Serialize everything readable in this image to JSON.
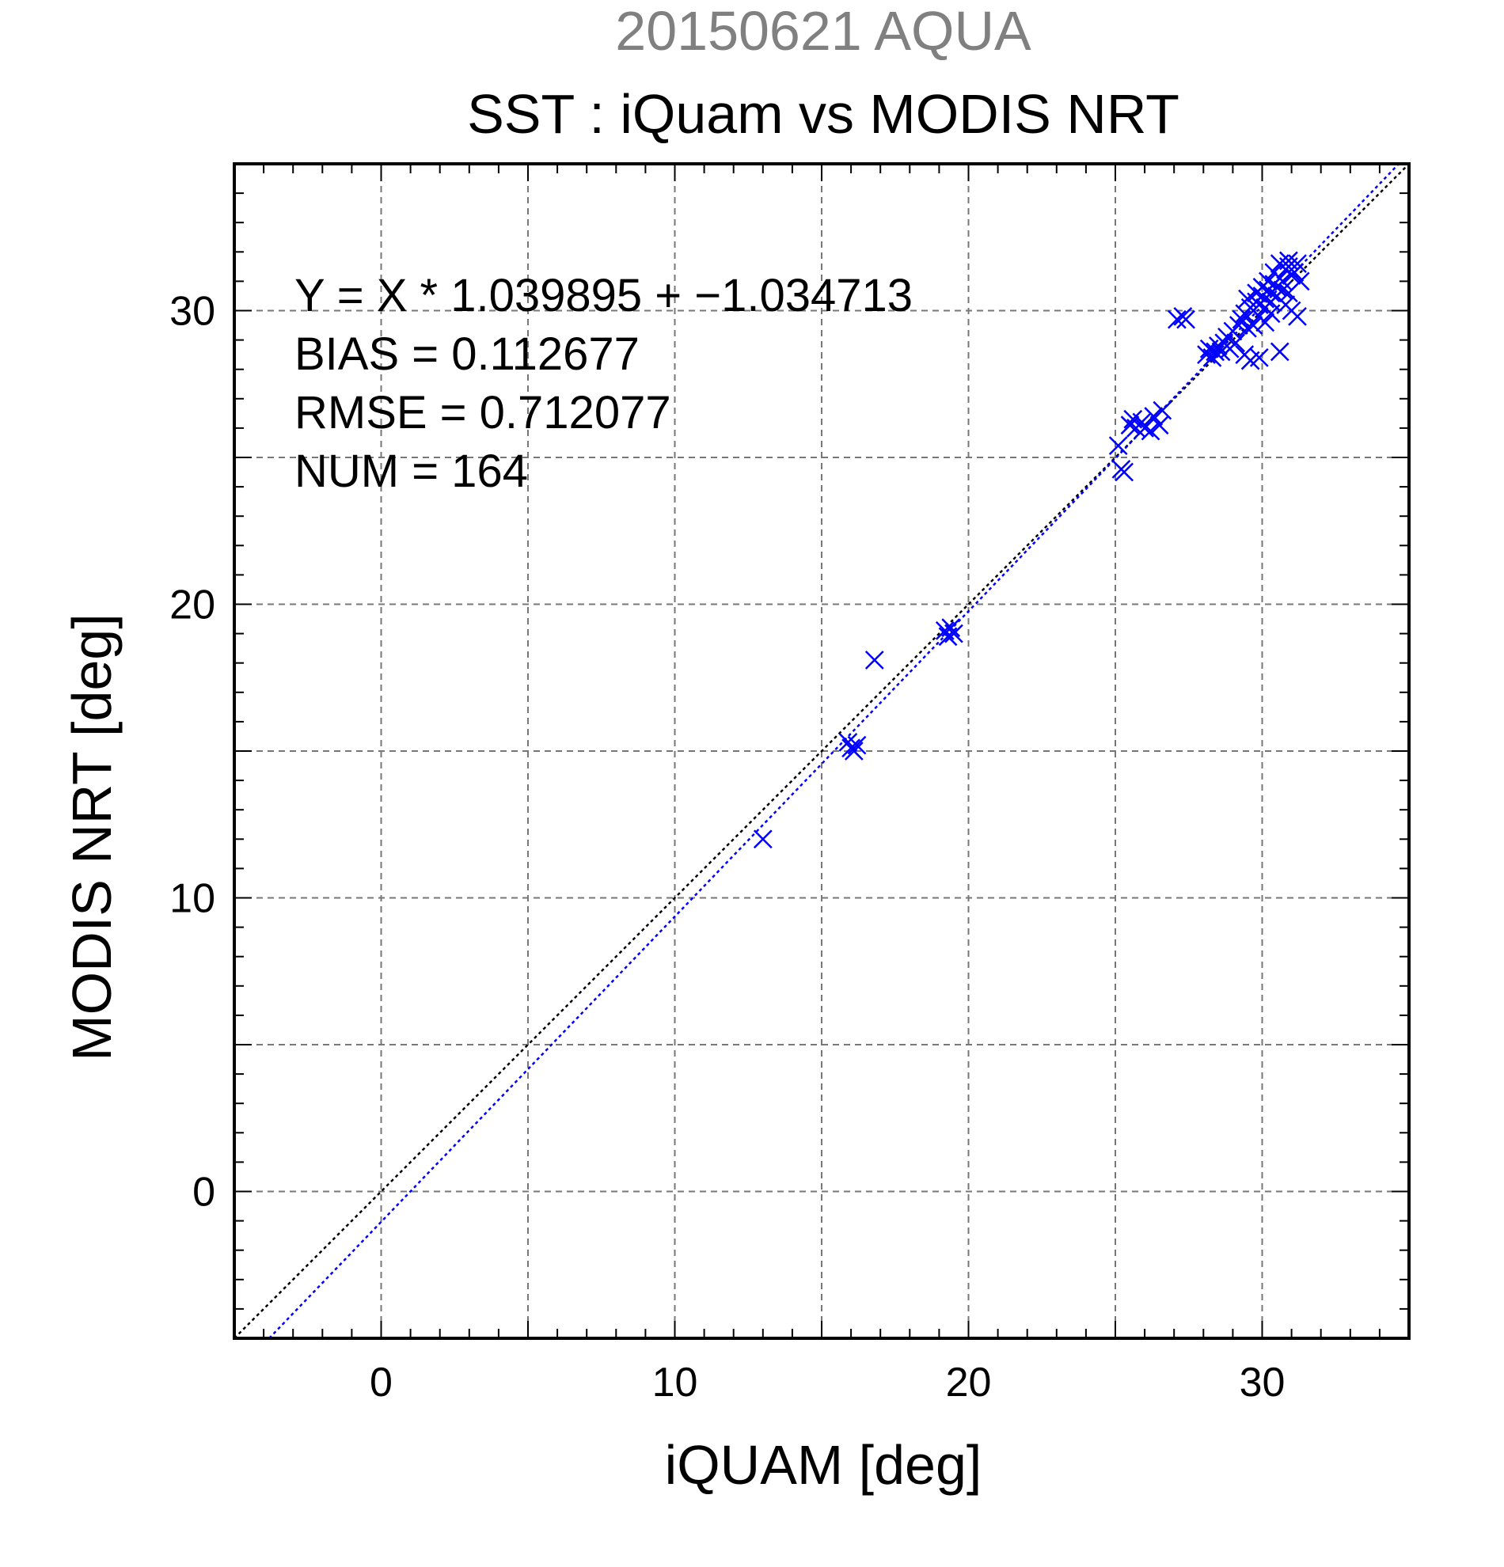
{
  "chart_data": {
    "type": "scatter",
    "title_top": "20150621 AQUA",
    "title": "SST : iQuam vs MODIS NRT",
    "xlabel": "iQUAM [deg]",
    "ylabel": "MODIS NRT [deg]",
    "xlim": [
      -5,
      35
    ],
    "ylim": [
      -5,
      35
    ],
    "x_ticks": [
      0,
      10,
      20,
      30
    ],
    "y_ticks": [
      0,
      10,
      20,
      30
    ],
    "minor_tick_step": 1,
    "grid": true,
    "grid_step": 5,
    "stats": [
      "Y = X * 1.039895 + −1.034713",
      "BIAS = 0.112677",
      "RMSE = 0.712077",
      "NUM = 164"
    ],
    "lines": [
      {
        "role": "identity",
        "slope": 1.0,
        "intercept": 0.0,
        "color": "#000000"
      },
      {
        "role": "regression",
        "slope": 1.039895,
        "intercept": -1.034713,
        "color": "#0000ff"
      }
    ],
    "marker": "x",
    "marker_color": "#0000ff",
    "points": [
      [
        13.0,
        12.0
      ],
      [
        16.8,
        18.1
      ],
      [
        15.9,
        15.3
      ],
      [
        16.0,
        15.1
      ],
      [
        16.1,
        15.0
      ],
      [
        16.2,
        15.2
      ],
      [
        19.2,
        19.1
      ],
      [
        19.3,
        18.9
      ],
      [
        19.4,
        19.2
      ],
      [
        19.5,
        19.0
      ],
      [
        25.1,
        25.4
      ],
      [
        25.2,
        24.6
      ],
      [
        25.3,
        24.5
      ],
      [
        25.5,
        26.1
      ],
      [
        25.6,
        26.3
      ],
      [
        25.7,
        26.0
      ],
      [
        25.9,
        26.2
      ],
      [
        26.0,
        26.0
      ],
      [
        26.2,
        25.9
      ],
      [
        26.3,
        26.4
      ],
      [
        26.5,
        26.1
      ],
      [
        26.6,
        26.6
      ],
      [
        27.1,
        29.7
      ],
      [
        27.3,
        29.8
      ],
      [
        27.4,
        29.7
      ],
      [
        28.1,
        28.5
      ],
      [
        28.2,
        28.7
      ],
      [
        28.3,
        28.4
      ],
      [
        28.4,
        28.6
      ],
      [
        28.5,
        28.8
      ],
      [
        28.6,
        28.6
      ],
      [
        28.7,
        28.9
      ],
      [
        28.8,
        29.1
      ],
      [
        28.9,
        28.7
      ],
      [
        29.0,
        29.3
      ],
      [
        29.1,
        28.9
      ],
      [
        29.2,
        29.5
      ],
      [
        29.3,
        29.7
      ],
      [
        29.4,
        29.9
      ],
      [
        29.5,
        29.4
      ],
      [
        29.6,
        30.1
      ],
      [
        29.7,
        30.0
      ],
      [
        29.8,
        30.3
      ],
      [
        29.9,
        29.8
      ],
      [
        29.4,
        28.5
      ],
      [
        29.6,
        28.3
      ],
      [
        29.9,
        28.4
      ],
      [
        29.8,
        30.6
      ],
      [
        29.9,
        30.2
      ],
      [
        30.0,
        30.5
      ],
      [
        30.0,
        30.8
      ],
      [
        30.1,
        30.1
      ],
      [
        30.1,
        30.4
      ],
      [
        30.2,
        30.7
      ],
      [
        30.2,
        31.0
      ],
      [
        30.3,
        30.3
      ],
      [
        30.3,
        30.6
      ],
      [
        30.4,
        30.9
      ],
      [
        30.4,
        31.3
      ],
      [
        30.5,
        30.5
      ],
      [
        30.5,
        30.8
      ],
      [
        30.6,
        31.1
      ],
      [
        30.6,
        31.6
      ],
      [
        30.7,
        30.7
      ],
      [
        30.7,
        31.0
      ],
      [
        30.8,
        31.4
      ],
      [
        30.8,
        30.2
      ],
      [
        30.9,
        30.6
      ],
      [
        30.9,
        31.5
      ],
      [
        31.0,
        31.2
      ],
      [
        31.0,
        30.0
      ],
      [
        31.1,
        31.3
      ],
      [
        31.2,
        29.8
      ],
      [
        31.2,
        31.6
      ],
      [
        30.6,
        28.6
      ],
      [
        30.1,
        29.6
      ],
      [
        30.3,
        29.9
      ],
      [
        29.7,
        29.5
      ],
      [
        29.5,
        30.4
      ],
      [
        30.9,
        31.7
      ],
      [
        31.3,
        31.0
      ]
    ]
  }
}
